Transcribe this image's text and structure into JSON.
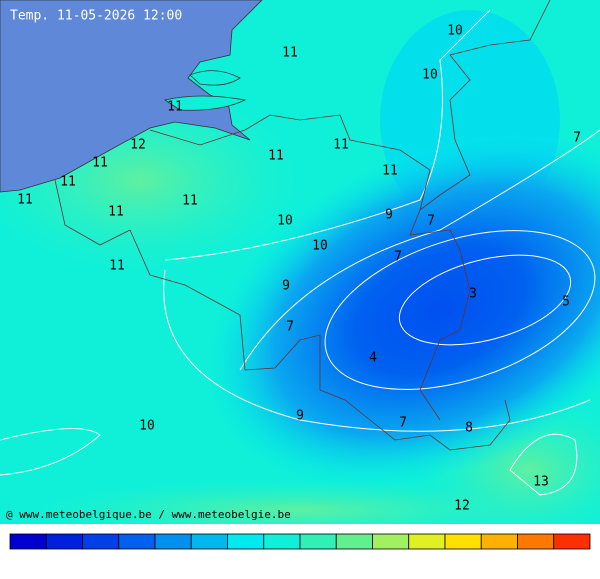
{
  "title": "Temp. 11-05-2026 12:00",
  "credit": "@ www.meteobelgique.be / www.meteobelgie.be",
  "labels": [
    11,
    10,
    10,
    11,
    12,
    11,
    11,
    11,
    11,
    11,
    11,
    11,
    11,
    10,
    9,
    7,
    10,
    7,
    11,
    9,
    3,
    5,
    7,
    7,
    4,
    9,
    7,
    8,
    10,
    13,
    12
  ]
}
